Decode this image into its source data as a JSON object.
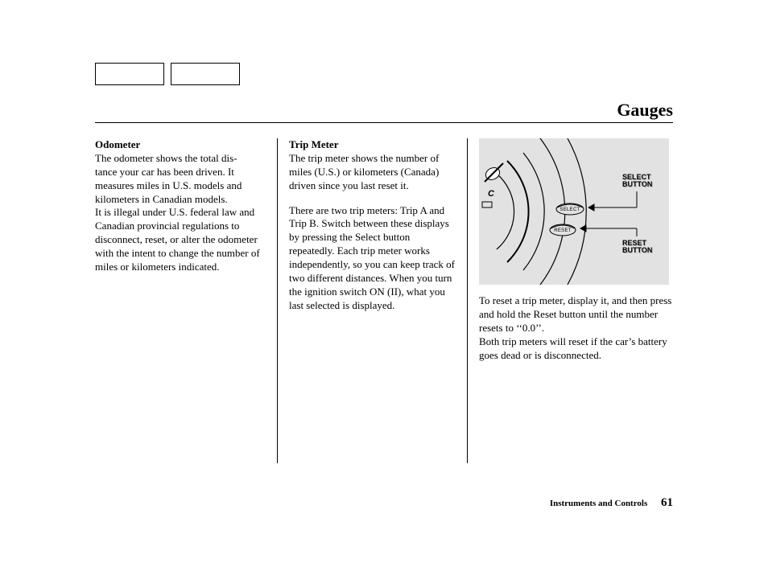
{
  "page": {
    "title": "Gauges",
    "footer_section": "Instruments and Controls",
    "page_number": "61"
  },
  "col1": {
    "heading": "Odometer",
    "text": "The odometer shows the total dis-\ntance your car has been driven. It measures miles in U.S. models and kilometers in Canadian models.\nIt is illegal under U.S. federal law and Canadian provincial regulations to disconnect, reset, or alter the odometer with the intent to change the number of miles or kilometers indicated."
  },
  "col2": {
    "heading": "Trip Meter",
    "para1": "The trip meter shows the number of miles (U.S.) or kilometers (Canada) driven since you last reset it.",
    "para2": "There are two trip meters: Trip A and Trip B. Switch between these displays by pressing the Select button repeatedly. Each trip meter works independently, so you can keep track of two different distances. When you turn the ignition switch ON (II), what you last selected is displayed."
  },
  "col3": {
    "para": "To reset a trip meter, display it, and then press and hold the Reset button until the number resets to ‘‘0.0’’.\nBoth trip meters will reset if the car’s battery goes dead or is disconnected."
  },
  "diagram": {
    "select_label": "SELECT\nBUTTON",
    "reset_label": "RESET\nBUTTON",
    "select_btn_text": "SELECT",
    "reset_btn_text": "RESET",
    "c_label": "C",
    "bg": "#e2e2e2",
    "stroke": "#000000"
  }
}
